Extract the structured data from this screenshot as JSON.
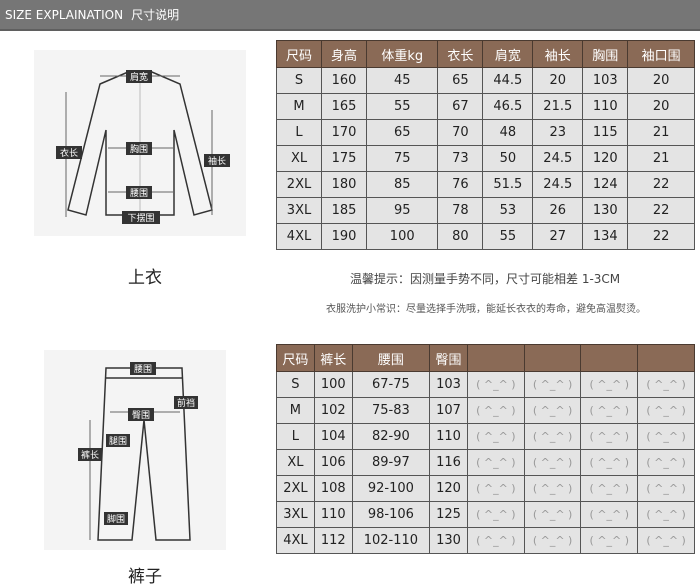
{
  "header": {
    "title_en": "SIZE EXPLAINATION",
    "title_cn": "尺寸说明"
  },
  "top": {
    "caption": "上衣",
    "labels": {
      "shoulder": "肩宽",
      "length": "衣长",
      "chest": "胸围",
      "sleeve": "袖长",
      "waist": "腰围",
      "hem": "下摆围"
    },
    "columns": [
      "尺码",
      "身高",
      "体重kg",
      "衣长",
      "肩宽",
      "袖长",
      "胸围",
      "袖口围"
    ],
    "rows": [
      [
        "S",
        "160",
        "45",
        "65",
        "44.5",
        "20",
        "103",
        "20"
      ],
      [
        "M",
        "165",
        "55",
        "67",
        "46.5",
        "21.5",
        "110",
        "20"
      ],
      [
        "L",
        "170",
        "65",
        "70",
        "48",
        "23",
        "115",
        "21"
      ],
      [
        "XL",
        "175",
        "75",
        "73",
        "50",
        "24.5",
        "120",
        "21"
      ],
      [
        "2XL",
        "180",
        "85",
        "76",
        "51.5",
        "24.5",
        "124",
        "22"
      ],
      [
        "3XL",
        "185",
        "95",
        "78",
        "53",
        "26",
        "130",
        "22"
      ],
      [
        "4XL",
        "190",
        "100",
        "80",
        "55",
        "27",
        "134",
        "22"
      ]
    ]
  },
  "notes": {
    "tip": "温馨提示：因测量手势不同，尺寸可能相差 1-3CM",
    "care": "衣服洗护小常识：尽量选择手洗哦，能延长衣衣的寿命，避免高温熨烫。"
  },
  "bottom": {
    "caption": "裤子",
    "labels": {
      "waist": "腰围",
      "hip": "臀围",
      "rise": "前裆",
      "length": "裤长",
      "thigh": "腿围",
      "hem": "脚围"
    },
    "columns": [
      "尺码",
      "裤长",
      "腰围",
      "臀围",
      "",
      "",
      "",
      ""
    ],
    "placeholder": "( ^_^ )",
    "rows": [
      [
        "S",
        "100",
        "67-75",
        "103"
      ],
      [
        "M",
        "102",
        "75-83",
        "107"
      ],
      [
        "L",
        "104",
        "82-90",
        "110"
      ],
      [
        "XL",
        "106",
        "89-97",
        "116"
      ],
      [
        "2XL",
        "108",
        "92-100",
        "120"
      ],
      [
        "3XL",
        "110",
        "98-106",
        "125"
      ],
      [
        "4XL",
        "112",
        "102-110",
        "130"
      ]
    ]
  },
  "colors": {
    "header_bar": "#767676",
    "table_header": "#8a6a56",
    "cell": "#e4e4e4"
  }
}
